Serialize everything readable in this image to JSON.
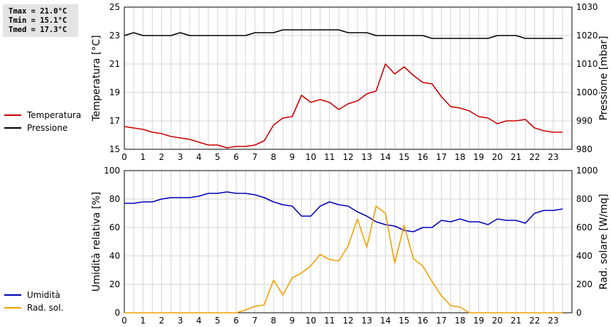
{
  "stats": {
    "tmax": "Tmax = 21.0°C",
    "tmin": "Tmin = 15.1°C",
    "tmed": "Tmed = 17.3°C"
  },
  "legend_top": [
    {
      "label": "Temperatura",
      "color": "#cc0000"
    },
    {
      "label": "Pressione",
      "color": "#000000"
    }
  ],
  "legend_bottom": [
    {
      "label": "Umidità",
      "color": "#0000bb"
    },
    {
      "label": "Rad. sol.",
      "color": "#f0a000"
    }
  ],
  "chart_data": [
    {
      "type": "line",
      "grid": true,
      "xlim": [
        0,
        24
      ],
      "x_ticks": [
        0,
        1,
        2,
        3,
        4,
        5,
        6,
        7,
        8,
        9,
        10,
        11,
        12,
        13,
        14,
        15,
        16,
        17,
        18,
        19,
        20,
        21,
        22,
        23
      ],
      "ylabel_left": "Temperatura [°C]",
      "ylim_left": [
        15,
        25
      ],
      "yticks_left": [
        15,
        17,
        19,
        21,
        23,
        25
      ],
      "ylabel_right": "Pressione [mbar]",
      "ylim_right": [
        980,
        1030
      ],
      "yticks_right": [
        980,
        990,
        1000,
        1010,
        1020,
        1030
      ],
      "series": [
        {
          "name": "Temperatura",
          "axis": "left",
          "color": "#cc0000",
          "x": [
            0,
            0.5,
            1,
            1.5,
            2,
            2.5,
            3,
            3.5,
            4,
            4.5,
            5,
            5.5,
            6,
            6.5,
            7,
            7.5,
            8,
            8.5,
            9,
            9.5,
            10,
            10.5,
            11,
            11.5,
            12,
            12.5,
            13,
            13.5,
            14,
            14.5,
            15,
            15.5,
            16,
            16.5,
            17,
            17.5,
            18,
            18.5,
            19,
            19.5,
            20,
            20.5,
            21,
            21.5,
            22,
            22.5,
            23,
            23.5
          ],
          "values": [
            16.6,
            16.5,
            16.4,
            16.2,
            16.1,
            15.9,
            15.8,
            15.7,
            15.5,
            15.3,
            15.3,
            15.1,
            15.2,
            15.2,
            15.3,
            15.6,
            16.7,
            17.2,
            17.3,
            18.8,
            18.3,
            18.5,
            18.3,
            17.8,
            18.2,
            18.4,
            18.9,
            19.1,
            21.0,
            20.3,
            20.8,
            20.2,
            19.7,
            19.6,
            18.7,
            18.0,
            17.9,
            17.7,
            17.3,
            17.2,
            16.8,
            17.0,
            17.0,
            17.1,
            16.5,
            16.3,
            16.2,
            16.2
          ]
        },
        {
          "name": "Pressione",
          "axis": "right",
          "color": "#000000",
          "x": [
            0,
            0.5,
            1,
            1.5,
            2,
            2.5,
            3,
            3.5,
            4,
            4.5,
            5,
            5.5,
            6,
            6.5,
            7,
            7.5,
            8,
            8.5,
            9,
            9.5,
            10,
            10.5,
            11,
            11.5,
            12,
            12.5,
            13,
            13.5,
            14,
            14.5,
            15,
            15.5,
            16,
            16.5,
            17,
            17.5,
            18,
            18.5,
            19,
            19.5,
            20,
            20.5,
            21,
            21.5,
            22,
            22.5,
            23,
            23.5
          ],
          "values": [
            1020,
            1021,
            1020,
            1020,
            1020,
            1020,
            1021,
            1020,
            1020,
            1020,
            1020,
            1020,
            1020,
            1020,
            1021,
            1021,
            1021,
            1022,
            1022,
            1022,
            1022,
            1022,
            1022,
            1022,
            1021,
            1021,
            1021,
            1020,
            1020,
            1020,
            1020,
            1020,
            1020,
            1019,
            1019,
            1019,
            1019,
            1019,
            1019,
            1019,
            1020,
            1020,
            1020,
            1019,
            1019,
            1019,
            1019,
            1019
          ]
        }
      ]
    },
    {
      "type": "line",
      "grid": true,
      "xlim": [
        0,
        24
      ],
      "x_ticks": [
        0,
        1,
        2,
        3,
        4,
        5,
        6,
        7,
        8,
        9,
        10,
        11,
        12,
        13,
        14,
        15,
        16,
        17,
        18,
        19,
        20,
        21,
        22,
        23
      ],
      "ylabel_left": "Umidità relativa [%]",
      "ylim_left": [
        0,
        100
      ],
      "yticks_left": [
        0,
        20,
        40,
        60,
        80,
        100
      ],
      "ylabel_right": "Rad. solare [W/mq]",
      "ylim_right": [
        0,
        1000
      ],
      "yticks_right": [
        0,
        200,
        400,
        600,
        800,
        1000
      ],
      "series": [
        {
          "name": "Umidità",
          "axis": "left",
          "color": "#0000bb",
          "x": [
            0,
            0.5,
            1,
            1.5,
            2,
            2.5,
            3,
            3.5,
            4,
            4.5,
            5,
            5.5,
            6,
            6.5,
            7,
            7.5,
            8,
            8.5,
            9,
            9.5,
            10,
            10.5,
            11,
            11.5,
            12,
            12.5,
            13,
            13.5,
            14,
            14.5,
            15,
            15.5,
            16,
            16.5,
            17,
            17.5,
            18,
            18.5,
            19,
            19.5,
            20,
            20.5,
            21,
            21.5,
            22,
            22.5,
            23,
            23.5
          ],
          "values": [
            77,
            77,
            78,
            78,
            80,
            81,
            81,
            81,
            82,
            84,
            84,
            85,
            84,
            84,
            83,
            81,
            78,
            76,
            75,
            68,
            68,
            75,
            78,
            76,
            75,
            71,
            68,
            64,
            62,
            61,
            58,
            57,
            60,
            60,
            65,
            64,
            66,
            64,
            64,
            62,
            66,
            65,
            65,
            63,
            70,
            72,
            72,
            73
          ]
        },
        {
          "name": "Rad. sol.",
          "axis": "right",
          "color": "#f0a000",
          "x": [
            0,
            0.5,
            1,
            1.5,
            2,
            2.5,
            3,
            3.5,
            4,
            4.5,
            5,
            5.5,
            6,
            6.5,
            7,
            7.5,
            8,
            8.5,
            9,
            9.5,
            10,
            10.5,
            11,
            11.5,
            12,
            12.5,
            13,
            13.5,
            14,
            14.5,
            15,
            15.5,
            16,
            16.5,
            17,
            17.5,
            18,
            18.5,
            19,
            19.5,
            20,
            20.5,
            21,
            21.5,
            22,
            22.5,
            23,
            23.5
          ],
          "values": [
            0,
            0,
            0,
            0,
            0,
            0,
            0,
            0,
            0,
            0,
            0,
            0,
            0,
            20,
            45,
            55,
            230,
            125,
            245,
            280,
            330,
            410,
            375,
            365,
            470,
            660,
            460,
            750,
            700,
            350,
            615,
            380,
            330,
            220,
            120,
            50,
            40,
            0,
            0,
            0,
            0,
            0,
            0,
            0,
            0,
            0,
            0,
            0
          ]
        }
      ]
    }
  ]
}
